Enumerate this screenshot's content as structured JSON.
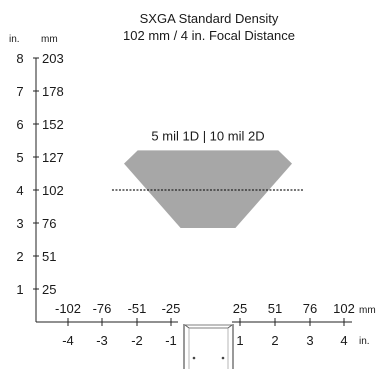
{
  "diagram": {
    "title_line1": "SXGA Standard Density",
    "title_line2": "102 mm / 4 in. Focal Distance",
    "units": {
      "in": "in.",
      "mm": "mm"
    },
    "zone_label": "5 mil 1D | 10 mil 2D",
    "colors": {
      "zone": "#a7a7a7",
      "axis": "#222222",
      "focal_line": "#222222"
    },
    "y_ticks": [
      {
        "in": "8",
        "mm": "203"
      },
      {
        "in": "7",
        "mm": "178"
      },
      {
        "in": "6",
        "mm": "152"
      },
      {
        "in": "5",
        "mm": "127"
      },
      {
        "in": "4",
        "mm": "102"
      },
      {
        "in": "3",
        "mm": "76"
      },
      {
        "in": "2",
        "mm": "51"
      },
      {
        "in": "1",
        "mm": "25"
      }
    ],
    "x_ticks": [
      {
        "in": "-4",
        "mm": "-102"
      },
      {
        "in": "-3",
        "mm": "-76"
      },
      {
        "in": "-2",
        "mm": "-51"
      },
      {
        "in": "-1",
        "mm": "-25"
      },
      {
        "in": "1",
        "mm": "25"
      },
      {
        "in": "2",
        "mm": "51"
      },
      {
        "in": "3",
        "mm": "76"
      },
      {
        "in": "4",
        "mm": "102"
      }
    ],
    "reading_zone": {
      "near_distance_in": 2.85,
      "far_distance_in": 5.2,
      "near_width_in": [
        -0.8,
        0.8
      ],
      "widest_width_in": [
        -2.45,
        2.45
      ],
      "widest_at_in": 4.8,
      "far_width_in": [
        -2.05,
        2.05
      ]
    },
    "focal_distance_in": 4,
    "focal_line_extent_in": [
      -2.8,
      2.8
    ]
  }
}
